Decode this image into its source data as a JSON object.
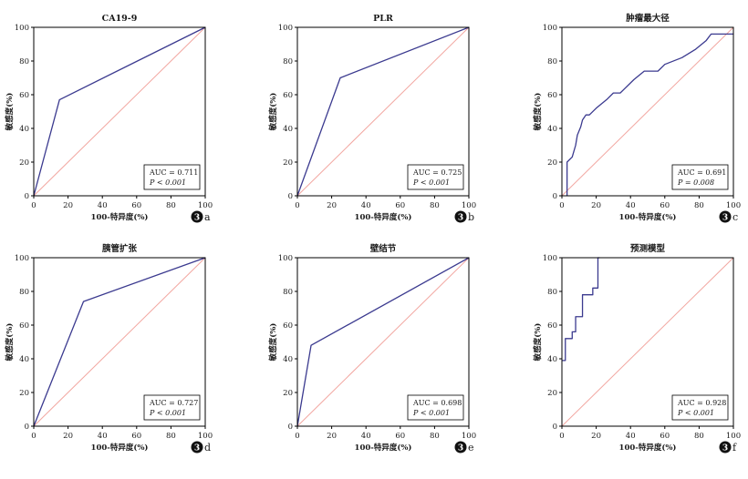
{
  "colors": {
    "roc_line": "#3b3a8f",
    "reference_line": "#f2a6a0",
    "axis": "#000000",
    "text": "#1a1a1a"
  },
  "chart_data": [
    {
      "type": "line",
      "panel": "a",
      "panel_badge": "3",
      "title": "CA19-9",
      "xlabel": "100-特异度(%)",
      "ylabel": "敏感度(%)",
      "xlim": [
        0,
        100
      ],
      "ylim": [
        0,
        100
      ],
      "ticks": [
        "0",
        "20",
        "40",
        "60",
        "80",
        "100"
      ],
      "tick_values": [
        0,
        20,
        40,
        60,
        80,
        100
      ],
      "series": [
        {
          "name": "ROC",
          "x": [
            0,
            15,
            100
          ],
          "y": [
            0,
            57,
            100
          ]
        }
      ],
      "auc_label": "AUC = 0.711",
      "p_label": "P < 0.001"
    },
    {
      "type": "line",
      "panel": "b",
      "panel_badge": "3",
      "title": "PLR",
      "xlabel": "100-特异度(%)",
      "ylabel": "敏感度(%)",
      "xlim": [
        0,
        100
      ],
      "ylim": [
        0,
        100
      ],
      "ticks": [
        "0",
        "20",
        "40",
        "60",
        "80",
        "100"
      ],
      "tick_values": [
        0,
        20,
        40,
        60,
        80,
        100
      ],
      "series": [
        {
          "name": "ROC",
          "x": [
            0,
            25,
            100
          ],
          "y": [
            0,
            70,
            100
          ]
        }
      ],
      "auc_label": "AUC = 0.725",
      "p_label": "P < 0.001"
    },
    {
      "type": "line",
      "panel": "c",
      "panel_badge": "3",
      "title": "肿瘤最大径",
      "xlabel": "100-特异度(%)",
      "ylabel": "敏感度(%)",
      "xlim": [
        0,
        100
      ],
      "ylim": [
        0,
        100
      ],
      "ticks": [
        "0",
        "20",
        "40",
        "60",
        "80",
        "100"
      ],
      "tick_values": [
        0,
        20,
        40,
        60,
        80,
        100
      ],
      "series": [
        {
          "name": "ROC",
          "x": [
            3,
            3,
            6,
            8,
            9,
            11,
            12,
            14,
            16,
            20,
            26,
            30,
            34,
            36,
            42,
            48,
            52,
            56,
            60,
            70,
            78,
            84,
            87,
            100
          ],
          "y": [
            0,
            20,
            23,
            30,
            36,
            41,
            45,
            48,
            48,
            52,
            57,
            61,
            61,
            63,
            69,
            74,
            74,
            74,
            78,
            82,
            87,
            92,
            96,
            96
          ]
        }
      ],
      "auc_label": "AUC = 0.691",
      "p_label": "P = 0.008"
    },
    {
      "type": "line",
      "panel": "d",
      "panel_badge": "3",
      "title": "胰管扩张",
      "xlabel": "100-特异度(%)",
      "ylabel": "敏感度(%)",
      "xlim": [
        0,
        100
      ],
      "ylim": [
        0,
        100
      ],
      "ticks": [
        "0",
        "20",
        "40",
        "60",
        "80",
        "100"
      ],
      "tick_values": [
        0,
        20,
        40,
        60,
        80,
        100
      ],
      "series": [
        {
          "name": "ROC",
          "x": [
            0,
            29,
            100
          ],
          "y": [
            0,
            74,
            100
          ]
        }
      ],
      "auc_label": "AUC = 0.727",
      "p_label": "P < 0.001"
    },
    {
      "type": "line",
      "panel": "e",
      "panel_badge": "3",
      "title": "壁结节",
      "xlabel": "100-特异度(%)",
      "ylabel": "敏感度(%)",
      "xlim": [
        0,
        100
      ],
      "ylim": [
        0,
        100
      ],
      "ticks": [
        "0",
        "20",
        "40",
        "60",
        "80",
        "100"
      ],
      "tick_values": [
        0,
        20,
        40,
        60,
        80,
        100
      ],
      "series": [
        {
          "name": "ROC",
          "x": [
            0,
            8,
            100
          ],
          "y": [
            0,
            48,
            100
          ]
        }
      ],
      "auc_label": "AUC = 0.698",
      "p_label": "P < 0.001"
    },
    {
      "type": "line",
      "panel": "f",
      "panel_badge": "3",
      "title": "预测模型",
      "xlabel": "100-特异度(%)",
      "ylabel": "敏感度(%)",
      "xlim": [
        0,
        100
      ],
      "ylim": [
        0,
        100
      ],
      "ticks": [
        "0",
        "20",
        "40",
        "60",
        "80",
        "100"
      ],
      "tick_values": [
        0,
        20,
        40,
        60,
        80,
        100
      ],
      "series": [
        {
          "name": "ROC",
          "x": [
            0,
            2,
            2,
            6,
            6,
            8,
            8,
            12,
            12,
            18,
            18,
            21,
            21,
            22
          ],
          "y": [
            39,
            39,
            52,
            52,
            56,
            56,
            65,
            65,
            78,
            78,
            82,
            82,
            100,
            100
          ]
        }
      ],
      "auc_label": "AUC = 0.928",
      "p_label": "P < 0.001"
    }
  ]
}
